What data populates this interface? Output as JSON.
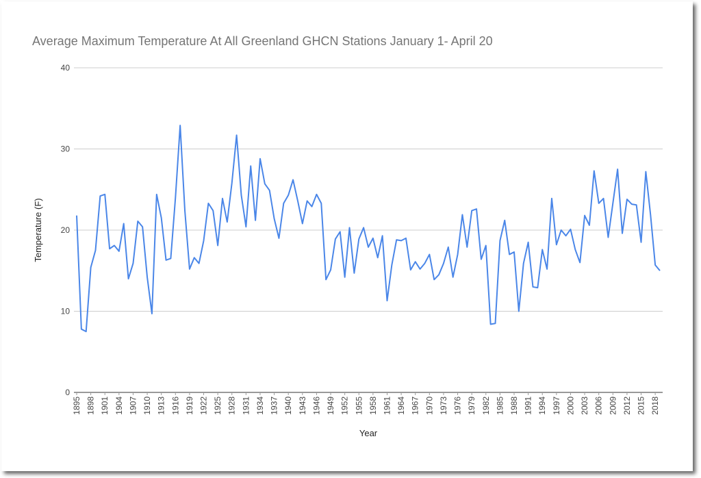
{
  "chart_data": {
    "type": "line",
    "title": "Average Maximum Temperature At All Greenland GHCN Stations January 1- April 20",
    "x_label": "Year",
    "y_label": "Temperature (F)",
    "color": "#4a86e8",
    "grid": true,
    "x": [
      1895,
      1896,
      1897,
      1898,
      1899,
      1900,
      1901,
      1902,
      1903,
      1904,
      1905,
      1906,
      1907,
      1908,
      1909,
      1910,
      1911,
      1912,
      1913,
      1914,
      1915,
      1916,
      1917,
      1918,
      1919,
      1920,
      1921,
      1922,
      1923,
      1924,
      1925,
      1926,
      1927,
      1928,
      1929,
      1930,
      1931,
      1932,
      1933,
      1934,
      1935,
      1936,
      1937,
      1938,
      1939,
      1940,
      1941,
      1942,
      1943,
      1944,
      1945,
      1946,
      1947,
      1948,
      1949,
      1950,
      1951,
      1952,
      1953,
      1954,
      1955,
      1956,
      1957,
      1958,
      1959,
      1960,
      1961,
      1962,
      1963,
      1964,
      1965,
      1966,
      1967,
      1968,
      1969,
      1970,
      1971,
      1972,
      1973,
      1974,
      1975,
      1976,
      1977,
      1978,
      1979,
      1980,
      1981,
      1982,
      1983,
      1984,
      1985,
      1986,
      1987,
      1988,
      1989,
      1990,
      1991,
      1992,
      1993,
      1994,
      1995,
      1996,
      1997,
      1998,
      1999,
      2000,
      2001,
      2002,
      2003,
      2004,
      2005,
      2006,
      2007,
      2008,
      2009,
      2010,
      2011,
      2012,
      2013,
      2014,
      2015,
      2016,
      2017,
      2018,
      2019
    ],
    "values": [
      21.8,
      7.8,
      7.5,
      15.4,
      17.5,
      24.2,
      24.4,
      17.7,
      18.1,
      17.4,
      20.8,
      14.0,
      15.9,
      21.1,
      20.4,
      14.2,
      9.7,
      24.4,
      21.5,
      16.3,
      16.5,
      24.0,
      32.9,
      22.4,
      15.2,
      16.6,
      15.9,
      18.7,
      23.3,
      22.4,
      18.1,
      23.9,
      21.0,
      25.8,
      31.7,
      24.3,
      20.4,
      27.9,
      21.2,
      28.8,
      25.7,
      24.9,
      21.4,
      19.0,
      23.3,
      24.3,
      26.2,
      23.6,
      20.8,
      23.6,
      22.9,
      24.4,
      23.3,
      13.9,
      15.1,
      18.9,
      19.8,
      14.2,
      20.3,
      14.7,
      18.9,
      20.3,
      17.9,
      19.0,
      16.6,
      19.3,
      11.3,
      15.7,
      18.8,
      18.7,
      19.0,
      15.1,
      16.1,
      15.2,
      15.9,
      17.0,
      13.9,
      14.5,
      15.9,
      17.9,
      14.2,
      17.0,
      21.9,
      17.9,
      22.4,
      22.6,
      16.4,
      18.1,
      8.4,
      8.5,
      18.7,
      21.2,
      17.0,
      17.3,
      10.0,
      15.9,
      18.5,
      13.0,
      12.9,
      17.6,
      15.2,
      23.9,
      18.2,
      20.0,
      19.3,
      20.1,
      17.6,
      16.0,
      21.8,
      20.6,
      27.3,
      23.3,
      23.9,
      19.1,
      23.3,
      27.5,
      19.6,
      23.8,
      23.2,
      23.1,
      18.5,
      27.2,
      21.9,
      15.7,
      15.0
    ],
    "xlim": [
      1895,
      2019
    ],
    "xticks": [
      1895,
      1898,
      1901,
      1904,
      1907,
      1910,
      1913,
      1916,
      1919,
      1922,
      1925,
      1928,
      1931,
      1934,
      1937,
      1940,
      1943,
      1946,
      1949,
      1952,
      1955,
      1958,
      1961,
      1964,
      1967,
      1970,
      1973,
      1976,
      1979,
      1982,
      1985,
      1988,
      1991,
      1994,
      1997,
      2000,
      2003,
      2006,
      2009,
      2012,
      2015,
      2018
    ],
    "ylim": [
      0,
      40
    ],
    "yticks": [
      0,
      10,
      20,
      30,
      40
    ]
  }
}
